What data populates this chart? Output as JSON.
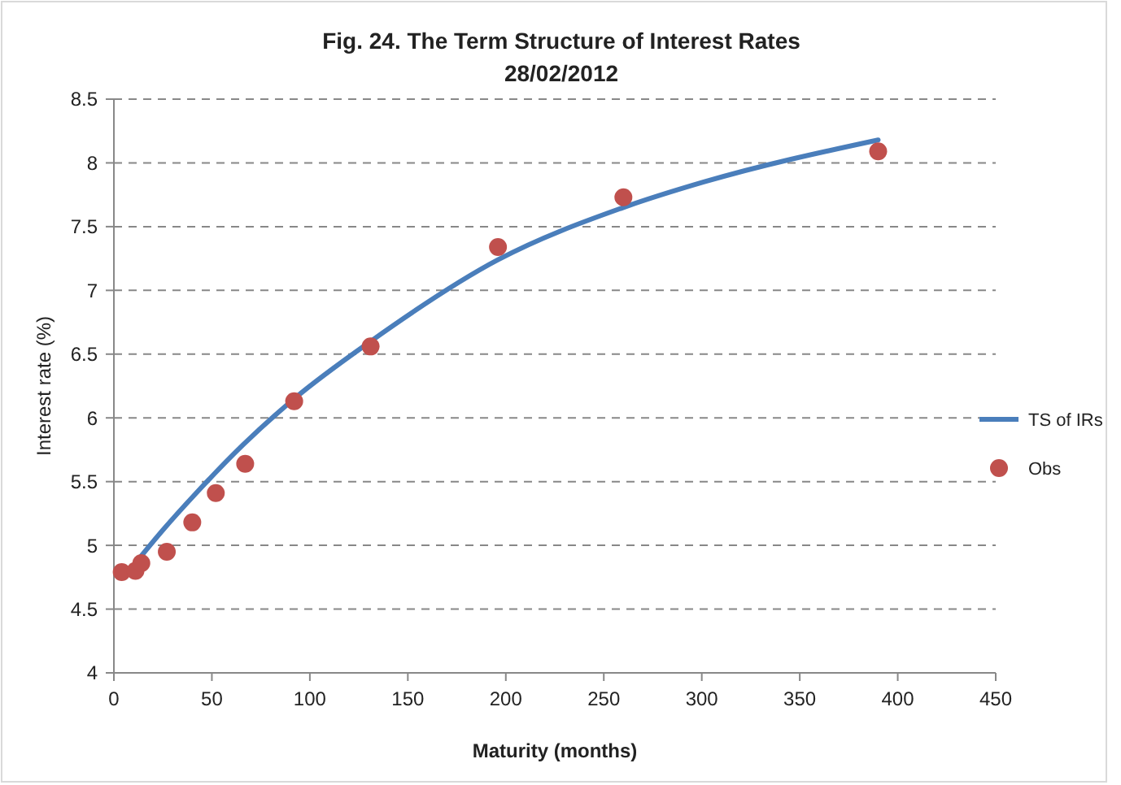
{
  "chart_data": {
    "type": "line",
    "title": "Fig. 24. The Term Structure of Interest Rates",
    "subtitle": "28/02/2012",
    "xlabel": "Maturity (months)",
    "ylabel": "Interest rate (%)",
    "xlim": [
      0,
      450
    ],
    "xticks": [
      0,
      50,
      100,
      150,
      200,
      250,
      300,
      350,
      400,
      450
    ],
    "ylim": [
      4,
      8.5
    ],
    "yticks": [
      4,
      4.5,
      5,
      5.5,
      6,
      6.5,
      7,
      7.5,
      8,
      8.5
    ],
    "grid": "y",
    "legend": "right",
    "series": [
      {
        "name": "TS of IRs",
        "color": "#4a7ebb",
        "marker": "none",
        "x": [
          12,
          25,
          42,
          66,
          92,
          131,
          196,
          260,
          301,
          390
        ],
        "values": [
          4.88,
          5.12,
          5.41,
          5.79,
          6.15,
          6.6,
          7.24,
          7.65,
          7.85,
          8.18
        ]
      },
      {
        "name": "Obs",
        "type": "scatter",
        "color": "#c0504d",
        "marker": "circle",
        "x": [
          4,
          11,
          14,
          27,
          40,
          52,
          67,
          92,
          131,
          196,
          260,
          390
        ],
        "values": [
          4.79,
          4.8,
          4.86,
          4.95,
          5.18,
          5.41,
          5.64,
          6.13,
          6.56,
          7.34,
          7.73,
          8.09
        ]
      }
    ]
  }
}
